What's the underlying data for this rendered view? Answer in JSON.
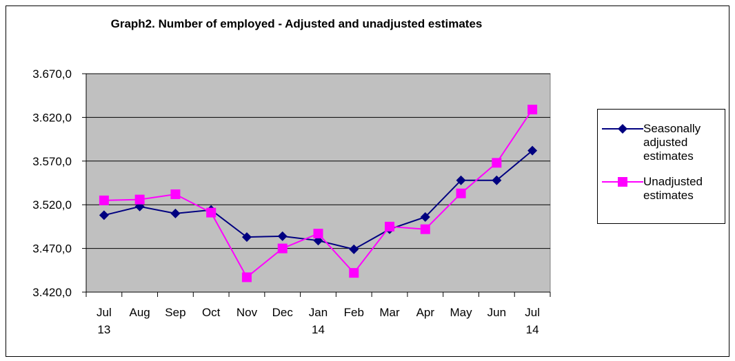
{
  "chart_data": {
    "type": "line",
    "title": "Graph2. Number of employed - Adjusted and unadjusted estimates",
    "categories": [
      [
        "Jul",
        "13"
      ],
      [
        "Aug"
      ],
      [
        "Sep"
      ],
      [
        "Oct"
      ],
      [
        "Nov"
      ],
      [
        "Dec"
      ],
      [
        "Jan",
        "14"
      ],
      [
        "Feb"
      ],
      [
        "Mar"
      ],
      [
        "Apr"
      ],
      [
        "May"
      ],
      [
        "Jun"
      ],
      [
        "Jul",
        "14"
      ]
    ],
    "series": [
      {
        "name": "Seasonally adjusted estimates",
        "color": "#000080",
        "marker": "diamond",
        "values": [
          3508,
          3518,
          3510,
          3514,
          3483,
          3484,
          3479,
          3469,
          3492,
          3506,
          3548,
          3548,
          3582
        ]
      },
      {
        "name": "Unadjusted estimates",
        "color": "#ff00ff",
        "marker": "square",
        "values": [
          3525,
          3526,
          3532,
          3511,
          3437,
          3470,
          3487,
          3442,
          3495,
          3492,
          3533,
          3568,
          3629
        ]
      }
    ],
    "ylim": [
      3420,
      3670
    ],
    "yticks": [
      {
        "value": 3420,
        "label": "3.420,0"
      },
      {
        "value": 3470,
        "label": "3.470,0"
      },
      {
        "value": 3520,
        "label": "3.520,0"
      },
      {
        "value": 3570,
        "label": "3.570,0"
      },
      {
        "value": 3620,
        "label": "3.620,0"
      },
      {
        "value": 3670,
        "label": "3.670,0"
      }
    ],
    "grid": true,
    "legend": "right"
  }
}
